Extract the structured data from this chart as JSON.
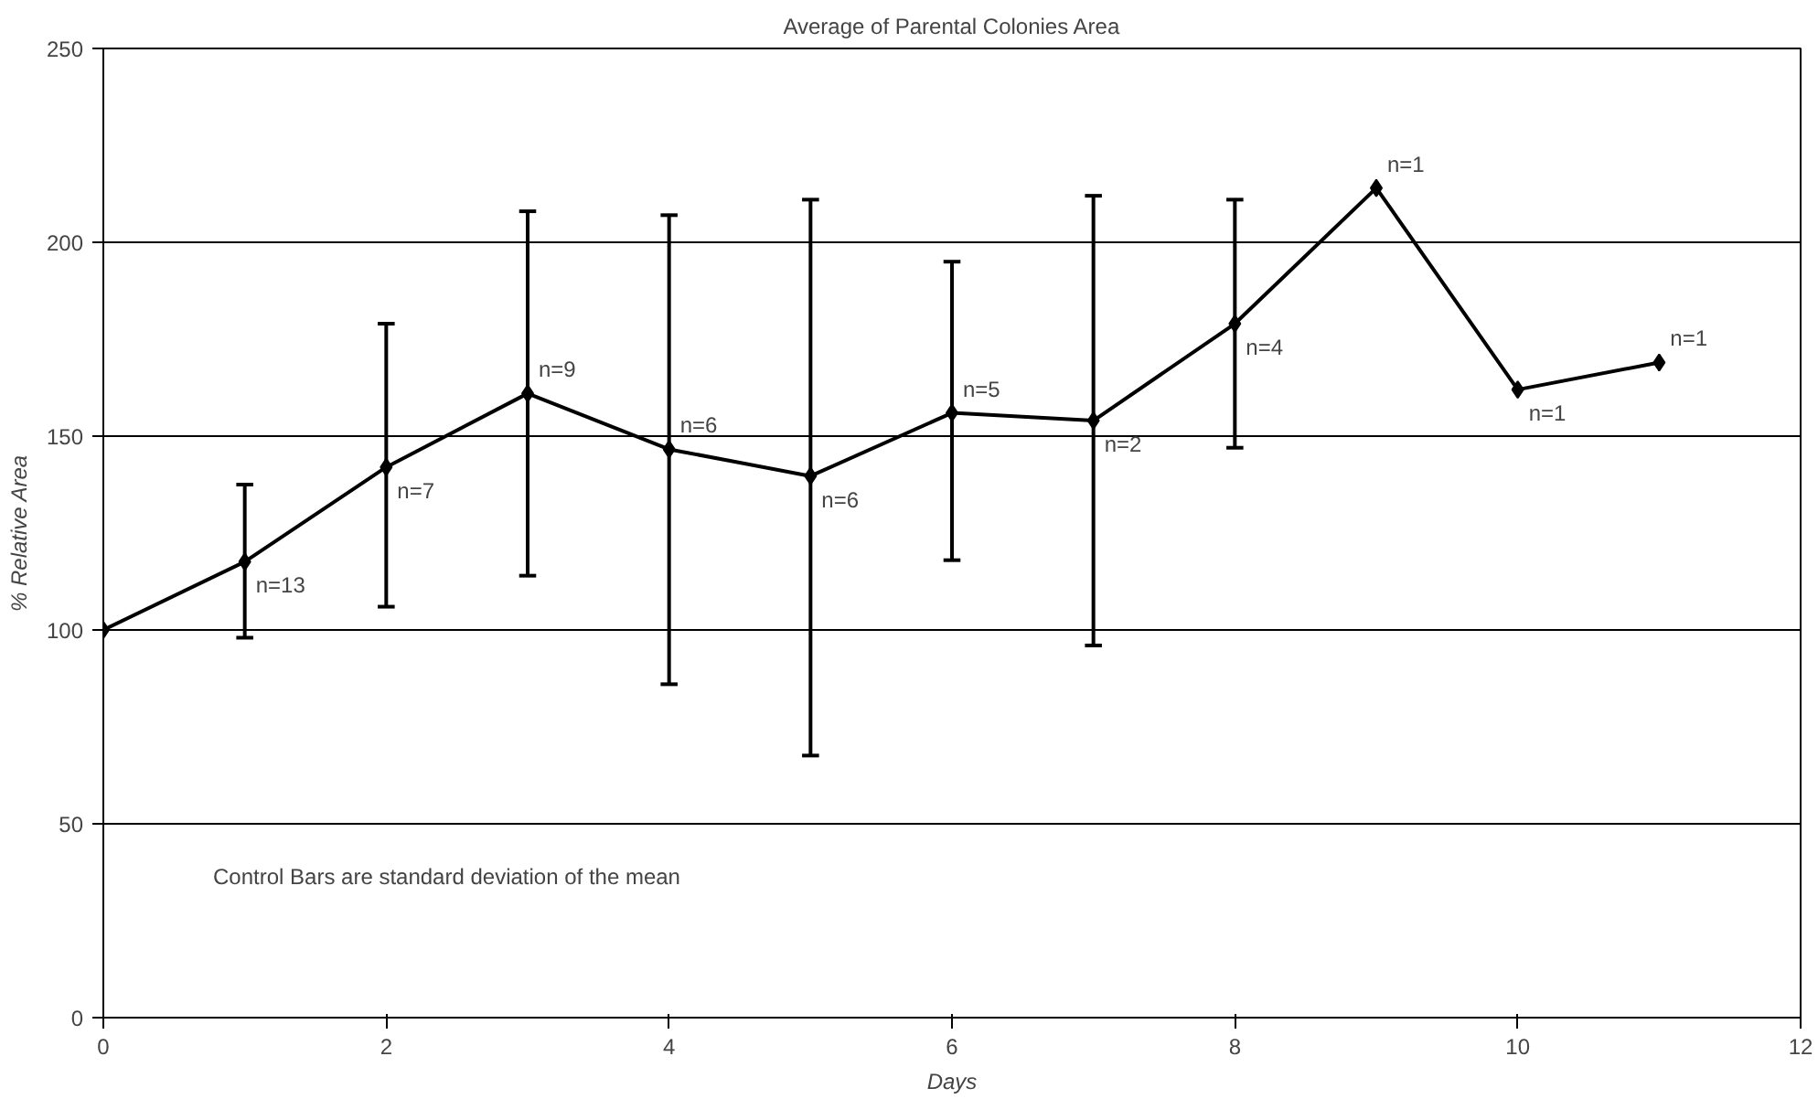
{
  "chart_data": {
    "type": "line",
    "title": "Average of Parental Colonies Area",
    "xlabel": "Days",
    "ylabel": "% Relative Area",
    "x": [
      0,
      1,
      2,
      3,
      4,
      5,
      6,
      7,
      8,
      9,
      10,
      11
    ],
    "series": [
      {
        "color": "#000000",
        "values": [
          100,
          117.6,
          142,
          161,
          146.6,
          139.7,
          156,
          154,
          179,
          214,
          162,
          169
        ],
        "errors": [
          null,
          [
            98,
            137.5
          ],
          [
            106,
            179
          ],
          [
            114,
            208
          ],
          [
            86,
            207
          ],
          [
            67.6,
            211
          ],
          [
            118,
            195
          ],
          [
            96,
            212
          ],
          [
            147,
            211
          ],
          null,
          null,
          null
        ]
      }
    ],
    "xlim": [
      0,
      12
    ],
    "ylim": [
      0,
      250
    ],
    "xticks": [
      0,
      2,
      4,
      6,
      8,
      10,
      12
    ],
    "yticks": [
      0,
      50,
      100,
      150,
      200,
      250
    ],
    "grid": "y",
    "marker": "diamond",
    "line_style": "solid",
    "annotations": [
      {
        "text": "n=13",
        "x": 1,
        "y": 117.6
      },
      {
        "text": "n=7",
        "x": 2,
        "y": 142
      },
      {
        "text": "n=9",
        "x": 3,
        "y": 161
      },
      {
        "text": "n=6",
        "x": 4,
        "y": 146.6
      },
      {
        "text": "n=6",
        "x": 5,
        "y": 139.7
      },
      {
        "text": "n=5",
        "x": 6,
        "y": 156
      },
      {
        "text": "n=2",
        "x": 7,
        "y": 154
      },
      {
        "text": "n=4",
        "x": 8,
        "y": 179
      },
      {
        "text": "n=1",
        "x": 9,
        "y": 214
      },
      {
        "text": "n=1",
        "x": 10,
        "y": 162
      },
      {
        "text": "n=1",
        "x": 11,
        "y": 169
      },
      "Control Bars are standard deviation of the mean"
    ]
  }
}
